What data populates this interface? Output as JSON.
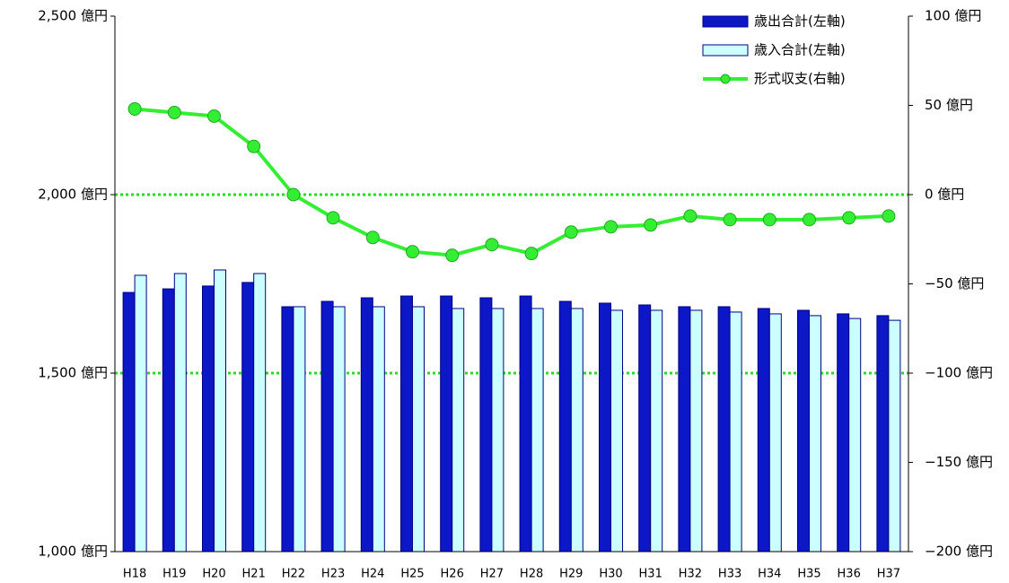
{
  "chart_data": {
    "type": "bar_line_dual",
    "categories": [
      "H18",
      "H19",
      "H20",
      "H21",
      "H22",
      "H23",
      "H24",
      "H25",
      "H26",
      "H27",
      "H28",
      "H29",
      "H30",
      "H31",
      "H32",
      "H33",
      "H34",
      "H35",
      "H36",
      "H37"
    ],
    "series": [
      {
        "name": "歳出合計(左軸)",
        "type": "bar",
        "axis": "y",
        "color": "#0c18c8",
        "edge": "#000080",
        "values": [
          1726,
          1736,
          1744,
          1754,
          1686,
          1701,
          1711,
          1716,
          1716,
          1711,
          1716,
          1701,
          1696,
          1691,
          1686,
          1686,
          1681,
          1676,
          1666,
          1661
        ]
      },
      {
        "name": "歳入合計(左軸)",
        "type": "bar",
        "axis": "y",
        "color": "#ccffff",
        "edge": "#000080",
        "values": [
          1774,
          1779,
          1789,
          1779,
          1686,
          1686,
          1686,
          1686,
          1681,
          1681,
          1681,
          1681,
          1676,
          1676,
          1676,
          1671,
          1666,
          1661,
          1653,
          1648
        ]
      },
      {
        "name": "形式収支(右軸)",
        "type": "line",
        "axis": "y2",
        "color": "#33ee33",
        "edge": "#22aa22",
        "values": [
          48,
          46,
          44,
          27,
          0,
          -13,
          -24,
          -32,
          -34,
          -28,
          -33,
          -21,
          -18,
          -17,
          -12,
          -14,
          -14,
          -14,
          -13,
          -12
        ]
      }
    ],
    "ylim": [
      1000,
      2500
    ],
    "yticks": [
      {
        "value": 1000,
        "label": "1,000 億円"
      },
      {
        "value": 1500,
        "label": "1,500 億円"
      },
      {
        "value": 2000,
        "label": "2,000 億円"
      },
      {
        "value": 2500,
        "label": "2,500 億円"
      }
    ],
    "y2lim": [
      -200,
      100
    ],
    "y2ticks": [
      {
        "value": -200,
        "label": "−200 億円"
      },
      {
        "value": -150,
        "label": "−150 億円"
      },
      {
        "value": -100,
        "label": "−100 億円"
      },
      {
        "value": -50,
        "label": "−50 億円"
      },
      {
        "value": 0,
        "label": "0 億円"
      },
      {
        "value": 50,
        "label": "50 億円"
      },
      {
        "value": 100,
        "label": "100 億円"
      }
    ],
    "negative_tick_color": "#ff0000",
    "reference_lines": [
      {
        "axis": "y2",
        "value": 0
      },
      {
        "axis": "y2",
        "value": -100
      }
    ],
    "reference_line_color": "#22dd22",
    "legend": "top-right"
  }
}
